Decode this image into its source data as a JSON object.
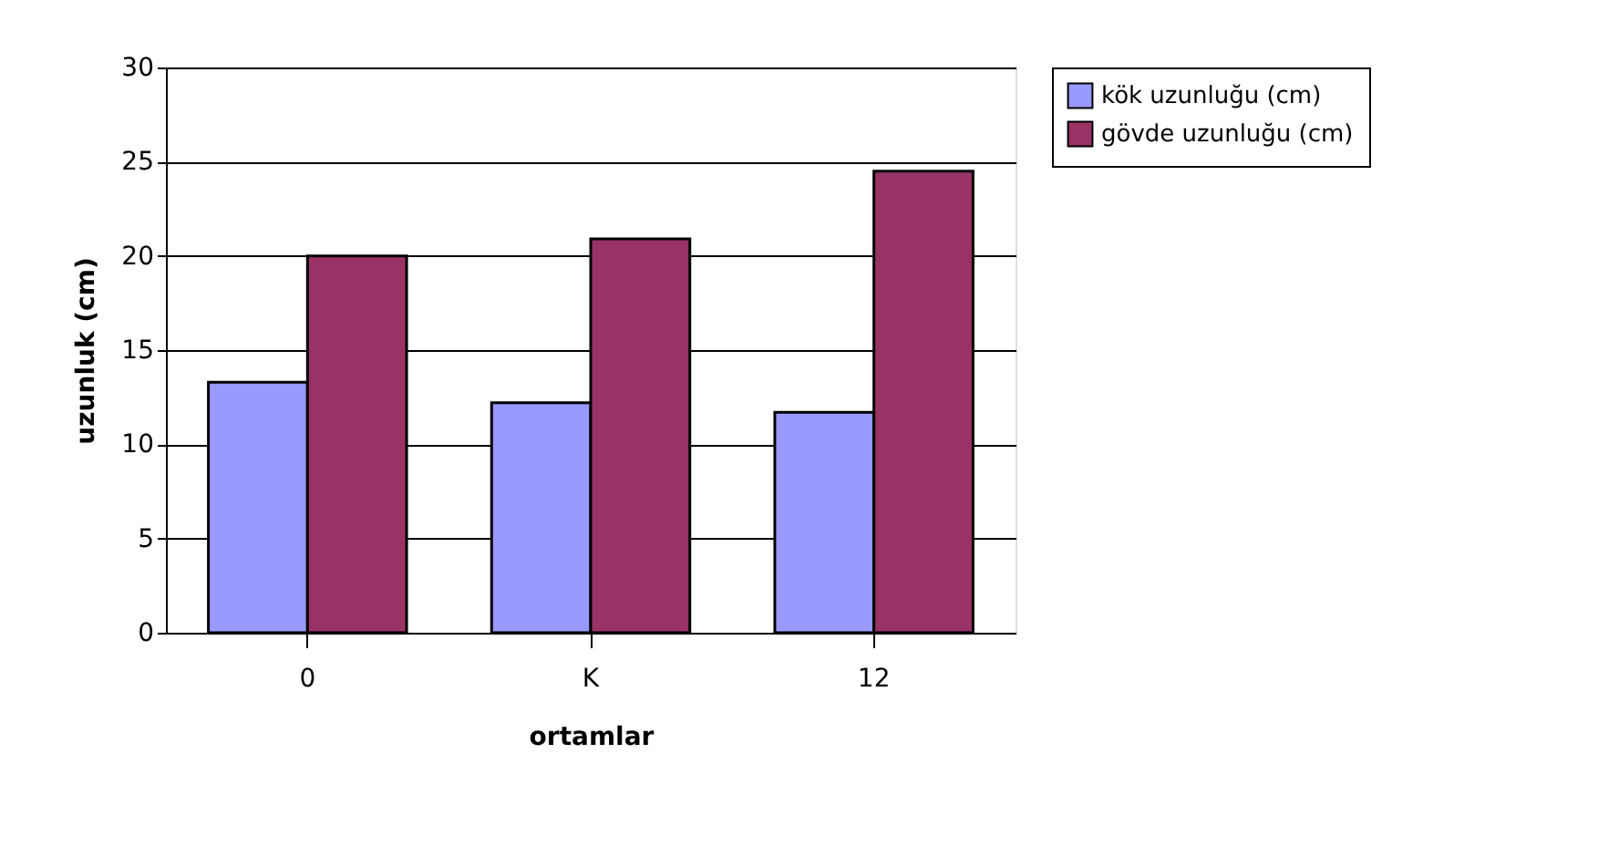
{
  "chart_data": {
    "type": "bar",
    "xlabel": "ortamlar",
    "ylabel": "uzunluk (cm)",
    "categories": [
      "0",
      "K",
      "12"
    ],
    "series": [
      {
        "name": "kök uzunluğu (cm)",
        "color": "#9999ff",
        "values": [
          13.3,
          12.2,
          11.7
        ]
      },
      {
        "name": "gövde uzunluğu (cm)",
        "color": "#993366",
        "values": [
          20.0,
          20.9,
          24.5
        ]
      }
    ],
    "ylim": [
      0,
      30
    ],
    "yticks": [
      0,
      5,
      10,
      15,
      20,
      25,
      30
    ],
    "grid": "y",
    "legend": "right"
  }
}
